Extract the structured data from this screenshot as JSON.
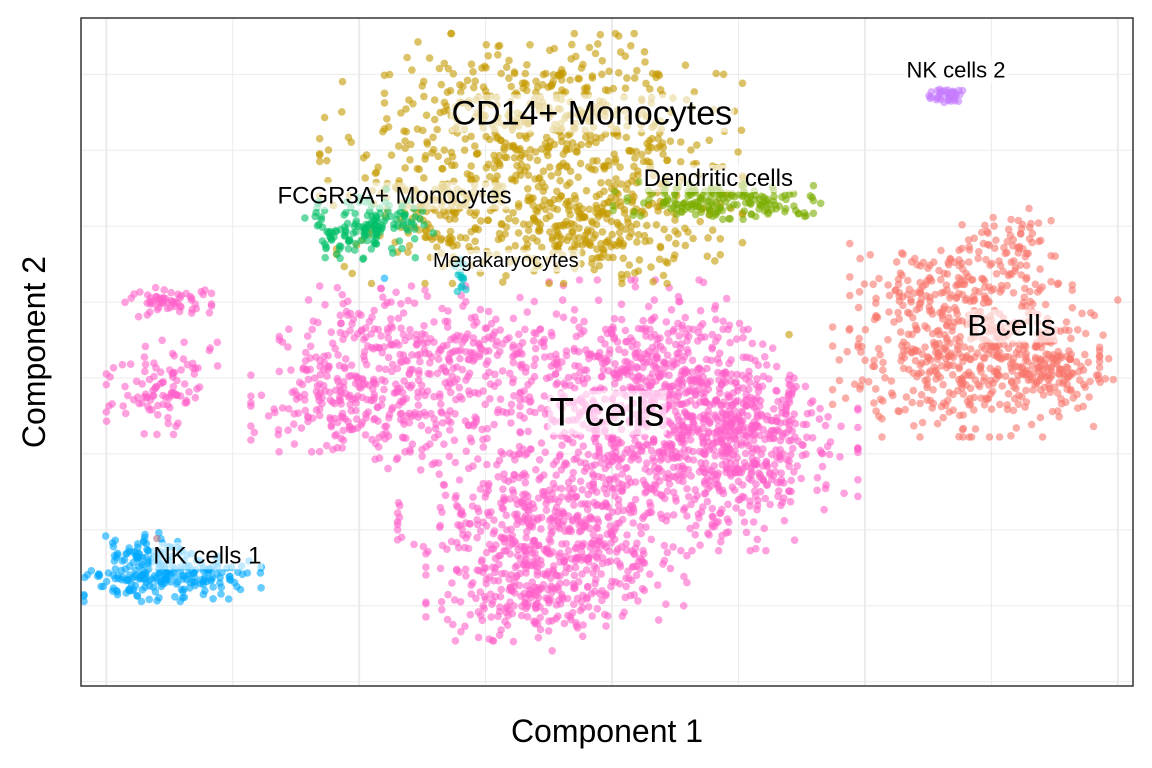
{
  "chart_data": {
    "type": "scatter",
    "title": "",
    "xlabel": "Component 1",
    "ylabel": "Component 2",
    "x_ticks_labeled": false,
    "y_ticks_labeled": false,
    "xlim": [
      -10.5,
      10.3
    ],
    "ylim": [
      -7.6,
      7.8
    ],
    "grid": true,
    "legend": "none",
    "point_alpha": 0.6,
    "series": [
      {
        "name": "T cells",
        "color": "#FF61C9",
        "label_size": 40,
        "blobs": [
          [
            -1.6,
            -3.9,
            1.2,
            0.8,
            280
          ],
          [
            -1.7,
            -5.5,
            0.9,
            0.6,
            180
          ],
          [
            -0.5,
            -4.5,
            0.9,
            0.8,
            180
          ],
          [
            0.2,
            -1.8,
            1.5,
            1.1,
            420
          ],
          [
            0.6,
            0.0,
            1.1,
            0.8,
            260
          ],
          [
            2.0,
            -2.5,
            1.3,
            0.9,
            360
          ],
          [
            1.9,
            -1.0,
            1.0,
            0.8,
            180
          ],
          [
            2.9,
            -2.0,
            0.6,
            0.9,
            120
          ],
          [
            -5.6,
            -1.1,
            0.7,
            0.5,
            130
          ],
          [
            -3.8,
            -1.3,
            0.9,
            0.7,
            160
          ],
          [
            -4.6,
            0.3,
            0.9,
            0.6,
            160
          ],
          [
            -2.5,
            0.3,
            0.8,
            0.5,
            110
          ],
          [
            -8.9,
            -0.7,
            0.5,
            0.5,
            100
          ],
          [
            -8.8,
            1.3,
            0.4,
            0.2,
            60
          ]
        ],
        "label": {
          "text": "T cells",
          "x": -0.1,
          "y": -1.3
        }
      },
      {
        "name": "CD14+ Monocytes",
        "color": "#C49A00",
        "label_size": 34,
        "blobs": [
          [
            -1.6,
            4.1,
            1.9,
            1.1,
            520
          ],
          [
            -1.2,
            5.9,
            1.5,
            0.7,
            260
          ],
          [
            -0.5,
            2.9,
            1.2,
            0.5,
            180
          ],
          [
            -3.5,
            3.5,
            0.6,
            0.5,
            60
          ]
        ],
        "label": {
          "text": "CD14+ Monocytes",
          "x": -0.4,
          "y": 5.6
        }
      },
      {
        "name": "Dendritic cells",
        "color": "#7CAE00",
        "label_size": 24,
        "blobs": [
          [
            2.0,
            3.6,
            0.9,
            0.2,
            140
          ],
          [
            3.1,
            3.5,
            0.5,
            0.15,
            40
          ]
        ],
        "label": {
          "text": "Dendritic cells",
          "x": 2.1,
          "y": 4.1
        }
      },
      {
        "name": "FCGR3A+ Monocytes",
        "color": "#00BE67",
        "label_size": 24,
        "blobs": [
          [
            -5.1,
            2.9,
            0.55,
            0.3,
            110
          ],
          [
            -4.2,
            3.2,
            0.4,
            0.3,
            40
          ]
        ],
        "label": {
          "text": "FCGR3A+ Monocytes",
          "x": -4.3,
          "y": 3.7
        }
      },
      {
        "name": "Megakaryocytes",
        "color": "#00BFC4",
        "label_size": 20,
        "blobs": [
          [
            -3.0,
            1.8,
            0.08,
            0.2,
            14
          ]
        ],
        "label": {
          "text": "Megakaryocytes",
          "x": -2.1,
          "y": 2.2
        }
      },
      {
        "name": "B cells",
        "color": "#F8766D",
        "label_size": 30,
        "blobs": [
          [
            7.0,
            -0.1,
            1.2,
            0.8,
            420
          ],
          [
            6.9,
            1.5,
            1.0,
            0.5,
            160
          ],
          [
            7.8,
            2.6,
            0.4,
            0.4,
            60
          ],
          [
            8.5,
            -0.1,
            0.6,
            0.4,
            80
          ],
          [
            9.0,
            -0.4,
            0.5,
            0.2,
            40
          ]
        ],
        "label": {
          "text": "B cells",
          "x": 7.9,
          "y": 0.7
        }
      },
      {
        "name": "NK cells 1",
        "color": "#00A9FF",
        "label_size": 24,
        "blobs": [
          [
            -8.7,
            -5.1,
            0.8,
            0.25,
            200
          ],
          [
            -9.2,
            -4.5,
            0.4,
            0.2,
            60
          ]
        ],
        "label": {
          "text": "NK cells 1",
          "x": -8.0,
          "y": -4.6
        }
      },
      {
        "name": "NK cells 2",
        "color": "#C77CFF",
        "label_size": 22,
        "blobs": [
          [
            6.6,
            6.0,
            0.17,
            0.09,
            40
          ]
        ],
        "label": {
          "text": "NK cells 2",
          "x": 6.8,
          "y": 6.6
        }
      }
    ],
    "outliers": [
      {
        "x": -4.5,
        "y": 1.8,
        "color": "#00A9FF"
      },
      {
        "x": -6.0,
        "y": 1.3,
        "color": "#FF61C9"
      },
      {
        "x": 6.0,
        "y": -0.1,
        "color": "#F8766D"
      },
      {
        "x": 10.0,
        "y": 1.3,
        "color": "#F8766D"
      },
      {
        "x": 3.5,
        "y": 0.5,
        "color": "#C49A00"
      },
      {
        "x": -9.0,
        "y": -4.2,
        "color": "#B07080"
      }
    ]
  }
}
